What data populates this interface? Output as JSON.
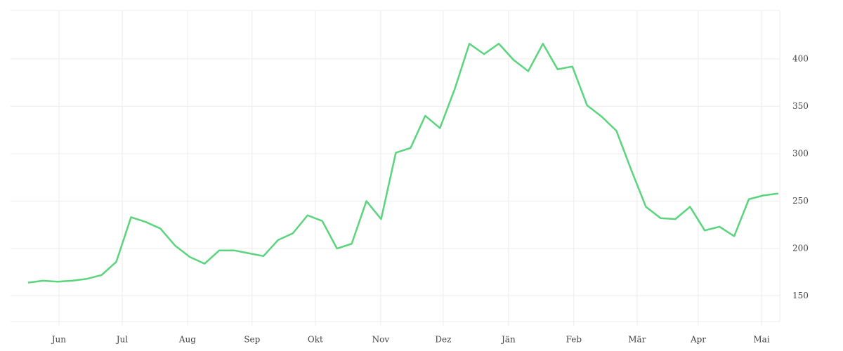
{
  "chart_data": {
    "type": "line",
    "categories": [
      null,
      null,
      null,
      null,
      null,
      null,
      null,
      null,
      null,
      null,
      null,
      null,
      null,
      null,
      null,
      null,
      null,
      null,
      null,
      null,
      null,
      null,
      null,
      null,
      null,
      null,
      null,
      null,
      null,
      null,
      null,
      null,
      null,
      null,
      null,
      null,
      null,
      null,
      null,
      null,
      null,
      null,
      null,
      null,
      null,
      null,
      null,
      null,
      null,
      null,
      null,
      null
    ],
    "values": [
      164,
      166,
      165,
      166,
      168,
      172,
      186,
      233,
      228,
      221,
      203,
      191,
      184,
      198,
      198,
      195,
      192,
      209,
      216,
      235,
      229,
      200,
      205,
      250,
      231,
      301,
      306,
      340,
      327,
      368,
      416,
      405,
      416,
      399,
      387,
      416,
      389,
      392,
      351,
      339,
      324,
      283,
      244,
      232,
      231,
      244,
      219,
      223,
      213,
      252,
      256,
      258
    ],
    "color": "#5ad47d",
    "xlim": [
      -1.19,
      51.1
    ],
    "xticks": [
      {
        "value": 2.1,
        "label": "Jun"
      },
      {
        "value": 6.4,
        "label": "Jul"
      },
      {
        "value": 10.84,
        "label": "Aug"
      },
      {
        "value": 15.23,
        "label": "Sep"
      },
      {
        "value": 19.53,
        "label": "Okt"
      },
      {
        "value": 23.97,
        "label": "Nov"
      },
      {
        "value": 28.22,
        "label": "Dez"
      },
      {
        "value": 32.66,
        "label": "Jän"
      },
      {
        "value": 37.1,
        "label": "Feb"
      },
      {
        "value": 41.4,
        "label": "Mär"
      },
      {
        "value": 45.56,
        "label": "Apr"
      },
      {
        "value": 49.86,
        "label": "Mai"
      }
    ],
    "ylim": [
      123,
      451
    ],
    "yticks": [
      150,
      200,
      250,
      300,
      350,
      400
    ],
    "grid": true
  }
}
